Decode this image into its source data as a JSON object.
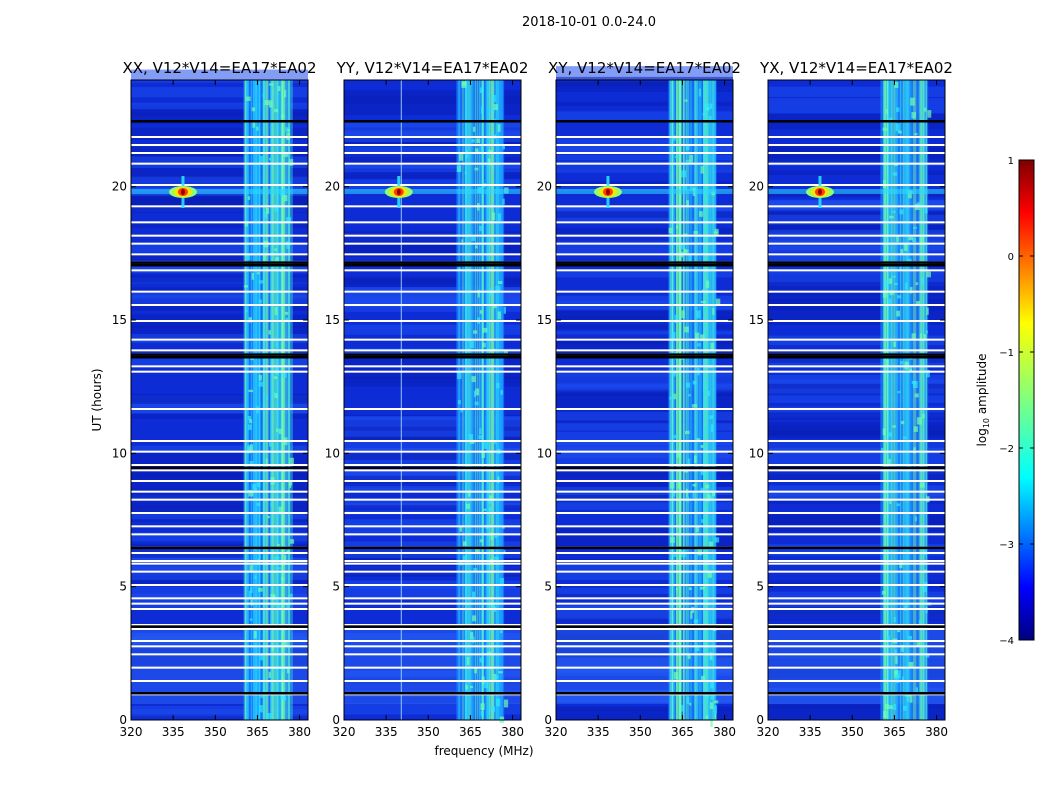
{
  "chart_data": {
    "type": "heatmap",
    "title": "2018-10-01 0.0-24.0",
    "xlabel": "frequency (MHz)",
    "ylabel": "UT (hours)",
    "xlim": [
      320,
      383
    ],
    "ylim": [
      0,
      24
    ],
    "x_ticks": [
      320,
      335,
      350,
      365,
      380
    ],
    "y_ticks": [
      0,
      5,
      10,
      15,
      20
    ],
    "colorbar": {
      "label": "log10 amplitude",
      "label_base": "log",
      "label_sub": "10",
      "label_rest": " amplitude",
      "range": [
        -4,
        1
      ],
      "ticks": [
        1,
        0,
        -1,
        -2,
        -3,
        -4
      ],
      "tick_labels": [
        "1",
        "0",
        "−1",
        "−2",
        "−3",
        "−4"
      ],
      "colormap": "jet"
    },
    "rfi_band_mhz": [
      360,
      377
    ],
    "flagged_hours": [
      22.5,
      21.9,
      21.6,
      21.3,
      20.9,
      20.1,
      19.3,
      18.7,
      18.2,
      17.9,
      17.5,
      17.2,
      17.1,
      16.9,
      16.1,
      15.6,
      15.0,
      14.3,
      13.9,
      13.75,
      13.65,
      13.3,
      13.1,
      11.7,
      10.5,
      10.1,
      9.6,
      9.4,
      9.0,
      8.6,
      8.3,
      7.8,
      7.3,
      7.0,
      6.5,
      6.3,
      6.0,
      5.9,
      5.6,
      5.1,
      4.6,
      4.4,
      4.2,
      3.6,
      3.45,
      3.0,
      2.8,
      2.5,
      2.0,
      1.5,
      1.05,
      1.0
    ],
    "panels": [
      {
        "title": "XX, V12*V14=EA17*EA02",
        "source": {
          "freq": 338.5,
          "ut": 19.8,
          "log_amp": 1.0
        },
        "v_line": false
      },
      {
        "title": "YY, V12*V14=EA17*EA02",
        "source": {
          "freq": 339.5,
          "ut": 19.8,
          "log_amp": 0.9
        },
        "v_line": true
      },
      {
        "title": "XY, V12*V14=EA17*EA02",
        "source": {
          "freq": 338.5,
          "ut": 19.8,
          "log_amp": 0.8
        },
        "v_line": false
      },
      {
        "title": "YX, V12*V14=EA17*EA02",
        "source": {
          "freq": 338.5,
          "ut": 19.8,
          "log_amp": 0.8
        },
        "v_line": false
      }
    ]
  }
}
